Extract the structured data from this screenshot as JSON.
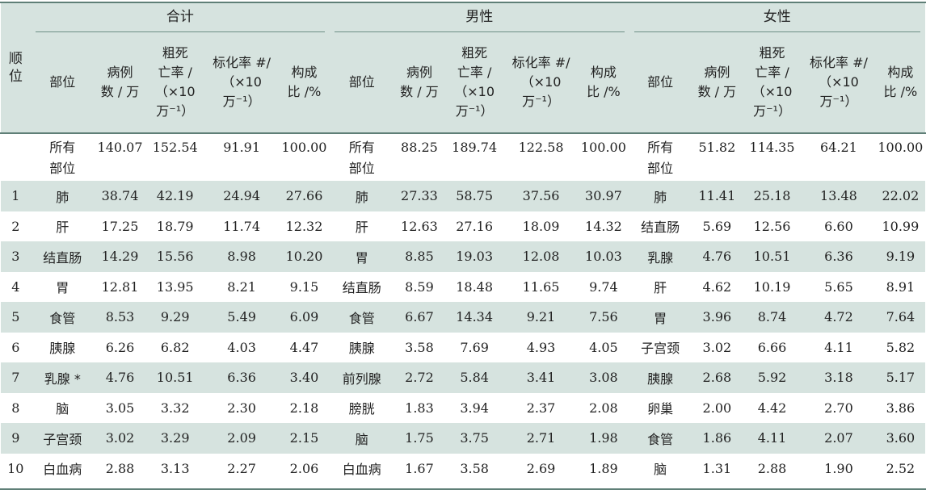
{
  "header": {
    "rank_label": "顺\n位",
    "groups": [
      "合计",
      "男性",
      "女性"
    ],
    "columns": [
      "部位",
      "病例\n数 / 万",
      "粗死\n亡率 /\n（×10\n万⁻¹）",
      "标化率 #/\n（×10\n万⁻¹）",
      "构成\n比 /%"
    ]
  },
  "rows": [
    {
      "rank": "",
      "total": [
        "所有\n部位",
        "140.07",
        "152.54",
        "91.91",
        "100.00"
      ],
      "male": [
        "所有\n部位",
        "88.25",
        "189.74",
        "122.58",
        "100.00"
      ],
      "female": [
        "所有\n部位",
        "51.82",
        "114.35",
        "64.21",
        "100.00"
      ]
    },
    {
      "rank": "1",
      "total": [
        "肺",
        "38.74",
        "42.19",
        "24.94",
        "27.66"
      ],
      "male": [
        "肺",
        "27.33",
        "58.75",
        "37.56",
        "30.97"
      ],
      "female": [
        "肺",
        "11.41",
        "25.18",
        "13.48",
        "22.02"
      ]
    },
    {
      "rank": "2",
      "total": [
        "肝",
        "17.25",
        "18.79",
        "11.74",
        "12.32"
      ],
      "male": [
        "肝",
        "12.63",
        "27.16",
        "18.09",
        "14.32"
      ],
      "female": [
        "结直肠",
        "5.69",
        "12.56",
        "6.60",
        "10.99"
      ]
    },
    {
      "rank": "3",
      "total": [
        "结直肠",
        "14.29",
        "15.56",
        "8.98",
        "10.20"
      ],
      "male": [
        "胃",
        "8.85",
        "19.03",
        "12.08",
        "10.03"
      ],
      "female": [
        "乳腺",
        "4.76",
        "10.51",
        "6.36",
        "9.19"
      ]
    },
    {
      "rank": "4",
      "total": [
        "胃",
        "12.81",
        "13.95",
        "8.21",
        "9.15"
      ],
      "male": [
        "结直肠",
        "8.59",
        "18.48",
        "11.65",
        "9.74"
      ],
      "female": [
        "肝",
        "4.62",
        "10.19",
        "5.65",
        "8.91"
      ]
    },
    {
      "rank": "5",
      "total": [
        "食管",
        "8.53",
        "9.29",
        "5.49",
        "6.09"
      ],
      "male": [
        "食管",
        "6.67",
        "14.34",
        "9.21",
        "7.56"
      ],
      "female": [
        "胃",
        "3.96",
        "8.74",
        "4.72",
        "7.64"
      ]
    },
    {
      "rank": "6",
      "total": [
        "胰腺",
        "6.26",
        "6.82",
        "4.03",
        "4.47"
      ],
      "male": [
        "胰腺",
        "3.58",
        "7.69",
        "4.93",
        "4.05"
      ],
      "female": [
        "子宫颈",
        "3.02",
        "6.66",
        "4.11",
        "5.82"
      ]
    },
    {
      "rank": "7",
      "total": [
        "乳腺 *",
        "4.76",
        "10.51",
        "6.36",
        "3.40"
      ],
      "male": [
        "前列腺",
        "2.72",
        "5.84",
        "3.41",
        "3.08"
      ],
      "female": [
        "胰腺",
        "2.68",
        "5.92",
        "3.18",
        "5.17"
      ]
    },
    {
      "rank": "8",
      "total": [
        "脑",
        "3.05",
        "3.32",
        "2.30",
        "2.18"
      ],
      "male": [
        "膀胱",
        "1.83",
        "3.94",
        "2.37",
        "2.08"
      ],
      "female": [
        "卵巢",
        "2.00",
        "4.42",
        "2.70",
        "3.86"
      ]
    },
    {
      "rank": "9",
      "total": [
        "子宫颈",
        "3.02",
        "3.29",
        "2.09",
        "2.15"
      ],
      "male": [
        "脑",
        "1.75",
        "3.75",
        "2.71",
        "1.98"
      ],
      "female": [
        "食管",
        "1.86",
        "4.11",
        "2.07",
        "3.60"
      ]
    },
    {
      "rank": "10",
      "total": [
        "白血病",
        "2.88",
        "3.13",
        "2.27",
        "2.06"
      ],
      "male": [
        "白血病",
        "1.67",
        "3.58",
        "2.69",
        "1.89"
      ],
      "female": [
        "脑",
        "1.31",
        "2.88",
        "1.90",
        "2.52"
      ]
    }
  ]
}
